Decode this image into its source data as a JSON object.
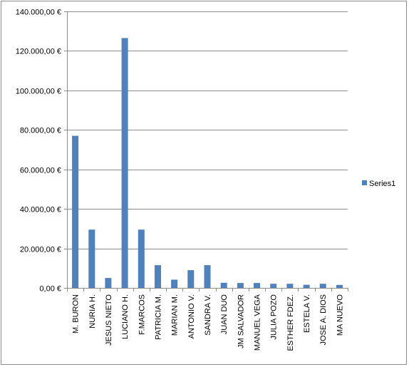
{
  "chart_data": {
    "type": "bar",
    "categories": [
      "M. BURON",
      "NURIA H.",
      "JESUS NIETO",
      "LUCIANO H.",
      "F.MARCOS",
      "PATRICIA M.",
      "MARIAN M.",
      "ANTONIO V.",
      "SANDRA V.",
      "JUAN DUO",
      "JM SALVADOR",
      "MANUEL VEGA",
      "JULIA POZO",
      "ESTHER FDEZ.",
      "ESTELA V.",
      "JOSE A. DIOS",
      "MA NUEVO"
    ],
    "series": [
      {
        "name": "Series1",
        "color": "#4f81bd",
        "values": [
          77000,
          29500,
          5000,
          126500,
          29500,
          11500,
          4200,
          9000,
          11500,
          2600,
          2500,
          2500,
          2100,
          2100,
          1600,
          2100,
          1500
        ]
      }
    ],
    "ylim": [
      0,
      140000
    ],
    "ytick_step": 20000,
    "ytick_labels": [
      "0,00 €",
      "20.000,00 €",
      "40.000,00 €",
      "60.000,00 €",
      "80.000,00 €",
      "100.000,00 €",
      "120.000,00 €",
      "140.000,00 €"
    ],
    "grid": true,
    "legend_position": "right"
  }
}
